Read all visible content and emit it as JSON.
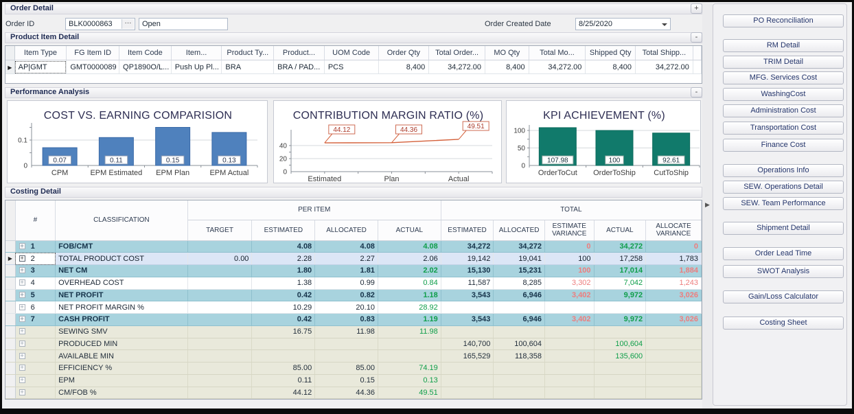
{
  "order_detail": {
    "title": "Order Detail",
    "expand_button": "+",
    "order_id_label": "Order ID",
    "order_id_value": "BLK0000863",
    "ellipsis_button": "···",
    "status_value": "Open",
    "created_date_label": "Order Created Date",
    "created_date_value": "8/25/2020"
  },
  "product_item_detail": {
    "title": "Product Item Detail",
    "collapse_button": "-",
    "columns": [
      "Item Type",
      "FG Item ID",
      "Item Code",
      "Item...",
      "Product Ty...",
      "Product...",
      "UOM Code",
      "Order Qty",
      "Total Order...",
      "MO Qty",
      "Total Mo...",
      "Shipped Qty",
      "Total Shipp..."
    ],
    "rows": [
      [
        "AP|GMT",
        "GMT0000089",
        "QP1890O/L...",
        "Push Up Pl...",
        "BRA",
        "BRA / PAD...",
        "PCS",
        "8,400",
        "34,272.00",
        "8,400",
        "34,272.00",
        "8,400",
        "34,272.00"
      ]
    ]
  },
  "performance": {
    "title": "Performance Analysis",
    "collapse_button": "-"
  },
  "chart_data": [
    {
      "type": "bar",
      "title": "COST VS. EARNING COMPARISION",
      "categories": [
        "CPM",
        "EPM Estimated",
        "EPM Plan",
        "EPM Actual"
      ],
      "values": [
        0.07,
        0.11,
        0.15,
        0.13
      ],
      "labels": [
        "0.07",
        "0.11",
        "0.15",
        "0.13"
      ],
      "yticks": [
        0,
        0.1
      ],
      "ylim": [
        0,
        0.175
      ],
      "bar_color": "#4f81bd"
    },
    {
      "type": "line",
      "title": "CONTRIBUTION MARGIN RATIO (%)",
      "categories": [
        "Estimated",
        "Plan",
        "Actual"
      ],
      "values": [
        44.12,
        44.36,
        49.51
      ],
      "labels": [
        "44.12",
        "44.36",
        "49.51"
      ],
      "yticks": [
        0,
        20,
        40
      ],
      "ylim": [
        0,
        70
      ],
      "line_color": "#d4603a"
    },
    {
      "type": "bar",
      "title": "KPI ACHIEVEMENT (%)",
      "categories": [
        "OrderToCut",
        "OrderToShip",
        "CutToShip"
      ],
      "values": [
        107.98,
        100,
        92.61
      ],
      "labels": [
        "107.98",
        "100",
        "92.61"
      ],
      "yticks": [
        0,
        50,
        100
      ],
      "ylim": [
        0,
        118
      ],
      "bar_color": "#117a6b"
    }
  ],
  "costing": {
    "title": "Costing Detail",
    "hash_header": "#",
    "classification_header": "CLASSIFICATION",
    "group_headers": {
      "per_item": "PER ITEM",
      "total": "TOTAL"
    },
    "per_item_columns": [
      "TARGET",
      "ESTIMATED",
      "ALLOCATED",
      "ACTUAL"
    ],
    "total_columns": [
      "ESTIMATED",
      "ALLOCATED",
      "ESTIMATE VARIANCE",
      "ACTUAL",
      "ALLOCATE VARIANCE"
    ],
    "rows": [
      {
        "num": "1",
        "label": "FOB/CMT",
        "variant": "teal",
        "selected": false,
        "cells": [
          {
            "t": ""
          },
          {
            "t": "4.08"
          },
          {
            "t": "4.08"
          },
          {
            "t": "4.08",
            "c": "green"
          },
          {
            "t": "34,272"
          },
          {
            "t": "34,272"
          },
          {
            "t": "0",
            "c": "red"
          },
          {
            "t": "34,272",
            "c": "green"
          },
          {
            "t": "0",
            "c": "red"
          }
        ]
      },
      {
        "num": "2",
        "label": "TOTAL PRODUCT COST",
        "variant": "sel",
        "selected": true,
        "cells": [
          {
            "t": "0.00"
          },
          {
            "t": "2.28"
          },
          {
            "t": "2.27"
          },
          {
            "t": "2.06"
          },
          {
            "t": "19,142"
          },
          {
            "t": "19,041"
          },
          {
            "t": "100"
          },
          {
            "t": "17,258"
          },
          {
            "t": "1,783"
          }
        ]
      },
      {
        "num": "3",
        "label": "NET CM",
        "variant": "teal",
        "selected": false,
        "cells": [
          {
            "t": ""
          },
          {
            "t": "1.80"
          },
          {
            "t": "1.81"
          },
          {
            "t": "2.02",
            "c": "green"
          },
          {
            "t": "15,130"
          },
          {
            "t": "15,231"
          },
          {
            "t": "100",
            "c": "red"
          },
          {
            "t": "17,014",
            "c": "green"
          },
          {
            "t": "1,884",
            "c": "red"
          }
        ]
      },
      {
        "num": "4",
        "label": "OVERHEAD COST",
        "variant": "white",
        "selected": false,
        "cells": [
          {
            "t": ""
          },
          {
            "t": "1.38"
          },
          {
            "t": "0.99"
          },
          {
            "t": "0.84",
            "c": "green"
          },
          {
            "t": "11,587"
          },
          {
            "t": "8,285"
          },
          {
            "t": "3,302",
            "c": "red"
          },
          {
            "t": "7,042",
            "c": "green"
          },
          {
            "t": "1,243",
            "c": "red"
          }
        ]
      },
      {
        "num": "5",
        "label": "NET PROFIT",
        "variant": "teal",
        "selected": false,
        "cells": [
          {
            "t": ""
          },
          {
            "t": "0.42"
          },
          {
            "t": "0.82"
          },
          {
            "t": "1.18",
            "c": "green"
          },
          {
            "t": "3,543"
          },
          {
            "t": "6,946"
          },
          {
            "t": "3,402",
            "c": "red"
          },
          {
            "t": "9,972",
            "c": "green"
          },
          {
            "t": "3,026",
            "c": "red"
          }
        ]
      },
      {
        "num": "6",
        "label": "NET PROFIT MARGIN %",
        "variant": "white",
        "selected": false,
        "cells": [
          {
            "t": ""
          },
          {
            "t": "10.29"
          },
          {
            "t": "20.10"
          },
          {
            "t": "28.92",
            "c": "green"
          },
          {
            "t": ""
          },
          {
            "t": ""
          },
          {
            "t": ""
          },
          {
            "t": ""
          },
          {
            "t": ""
          }
        ]
      },
      {
        "num": "7",
        "label": "CASH PROFIT",
        "variant": "teal",
        "selected": false,
        "cells": [
          {
            "t": ""
          },
          {
            "t": "0.42"
          },
          {
            "t": "0.83"
          },
          {
            "t": "1.19",
            "c": "green"
          },
          {
            "t": "3,543"
          },
          {
            "t": "6,946"
          },
          {
            "t": "3,402",
            "c": "red"
          },
          {
            "t": "9,972",
            "c": "green"
          },
          {
            "t": "3,026",
            "c": "red"
          }
        ]
      },
      {
        "num": "",
        "label": "SEWING SMV",
        "variant": "cream",
        "selected": false,
        "cells": [
          {
            "t": ""
          },
          {
            "t": "16.75"
          },
          {
            "t": "11.98"
          },
          {
            "t": "11.98",
            "c": "green"
          },
          {
            "t": ""
          },
          {
            "t": ""
          },
          {
            "t": ""
          },
          {
            "t": ""
          },
          {
            "t": ""
          }
        ]
      },
      {
        "num": "",
        "label": "PRODUCED MIN",
        "variant": "cream",
        "selected": false,
        "cells": [
          {
            "t": ""
          },
          {
            "t": ""
          },
          {
            "t": ""
          },
          {
            "t": ""
          },
          {
            "t": "140,700"
          },
          {
            "t": "100,604"
          },
          {
            "t": ""
          },
          {
            "t": "100,604",
            "c": "green"
          },
          {
            "t": ""
          }
        ]
      },
      {
        "num": "",
        "label": "AVAILABLE MIN",
        "variant": "cream",
        "selected": false,
        "cells": [
          {
            "t": ""
          },
          {
            "t": ""
          },
          {
            "t": ""
          },
          {
            "t": ""
          },
          {
            "t": "165,529"
          },
          {
            "t": "118,358"
          },
          {
            "t": ""
          },
          {
            "t": "135,600",
            "c": "green"
          },
          {
            "t": ""
          }
        ]
      },
      {
        "num": "",
        "label": "EFFICIENCY %",
        "variant": "cream",
        "selected": false,
        "cells": [
          {
            "t": ""
          },
          {
            "t": "85.00"
          },
          {
            "t": "85.00"
          },
          {
            "t": "74.19",
            "c": "green"
          },
          {
            "t": ""
          },
          {
            "t": ""
          },
          {
            "t": ""
          },
          {
            "t": ""
          },
          {
            "t": ""
          }
        ]
      },
      {
        "num": "",
        "label": "EPM",
        "variant": "cream",
        "selected": false,
        "cells": [
          {
            "t": ""
          },
          {
            "t": "0.11"
          },
          {
            "t": "0.15"
          },
          {
            "t": "0.13",
            "c": "green"
          },
          {
            "t": ""
          },
          {
            "t": ""
          },
          {
            "t": ""
          },
          {
            "t": ""
          },
          {
            "t": ""
          }
        ]
      },
      {
        "num": "",
        "label": "CM/FOB %",
        "variant": "cream",
        "selected": false,
        "cells": [
          {
            "t": ""
          },
          {
            "t": "44.12"
          },
          {
            "t": "44.36"
          },
          {
            "t": "49.51",
            "c": "green"
          },
          {
            "t": ""
          },
          {
            "t": ""
          },
          {
            "t": ""
          },
          {
            "t": ""
          },
          {
            "t": ""
          }
        ]
      }
    ]
  },
  "sidebar": {
    "buttons": [
      "PO Reconciliation",
      "RM Detail",
      "TRIM Detail",
      "MFG. Services Cost",
      "WashingCost",
      "Administration Cost",
      "Transportation Cost",
      "Finance Cost",
      "Operations Info",
      "SEW. Operations Detail",
      "SEW. Team Performance",
      "Shipment Detail",
      "Order Lead Time",
      "SWOT Analysis",
      "Gain/Loss Calculator",
      "Costing Sheet"
    ]
  }
}
